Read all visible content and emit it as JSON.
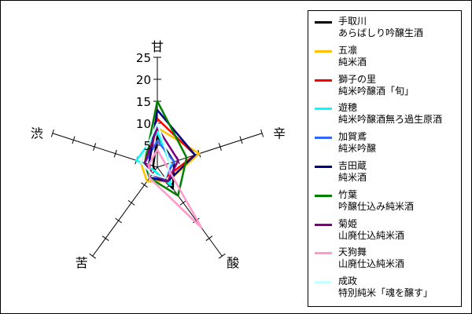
{
  "chart_data": {
    "type": "radar",
    "axes": [
      "甘",
      "辛",
      "酸",
      "苦",
      "渋"
    ],
    "rlim": [
      0,
      25
    ],
    "ticks": [
      "5",
      "10",
      "15",
      "20",
      "25"
    ],
    "grid": false,
    "legend_position": "right",
    "series": [
      {
        "name_line1": "手取川",
        "name_line2": "あらばしり吟醸生酒",
        "color": "#000000",
        "values": [
          7,
          4,
          6,
          1,
          1
        ]
      },
      {
        "name_line1": "五凛",
        "name_line2": "純米酒",
        "color": "#ffc000",
        "values": [
          9,
          10,
          4,
          4,
          4
        ]
      },
      {
        "name_line1": "獅子の里",
        "name_line2": "純米吟醸酒「旬」",
        "color": "#ff0000",
        "values": [
          11,
          9,
          3,
          2,
          2
        ]
      },
      {
        "name_line1": "遊穂",
        "name_line2": "純米吟醸酒無ろ過生原酒",
        "color": "#00ffff",
        "values": [
          8,
          3,
          5,
          1,
          5
        ]
      },
      {
        "name_line1": "加賀鳶",
        "name_line2": "純米吟醸",
        "color": "#3366ff",
        "values": [
          6,
          4,
          3,
          3,
          3
        ]
      },
      {
        "name_line1": "吉田蔵",
        "name_line2": "純米酒",
        "color": "#000080",
        "values": [
          13,
          9,
          4,
          3,
          2
        ]
      },
      {
        "name_line1": "竹葉",
        "name_line2": "吟醸仕込み純米酒",
        "color": "#008000",
        "values": [
          15,
          7,
          8,
          3,
          3
        ]
      },
      {
        "name_line1": "菊姫",
        "name_line2": "山廃仕込純米酒",
        "color": "#800080",
        "values": [
          9,
          5,
          4,
          2,
          3
        ]
      },
      {
        "name_line1": "天狗舞",
        "name_line2": "山廃仕込純米酒",
        "color": "#ff99cc",
        "values": [
          4,
          2,
          17,
          3,
          2
        ]
      },
      {
        "name_line1": "成政",
        "name_line2": "特別純米「魂を醸す」",
        "color": "#ccffff",
        "values": [
          10,
          3,
          3,
          2,
          4
        ]
      }
    ]
  }
}
